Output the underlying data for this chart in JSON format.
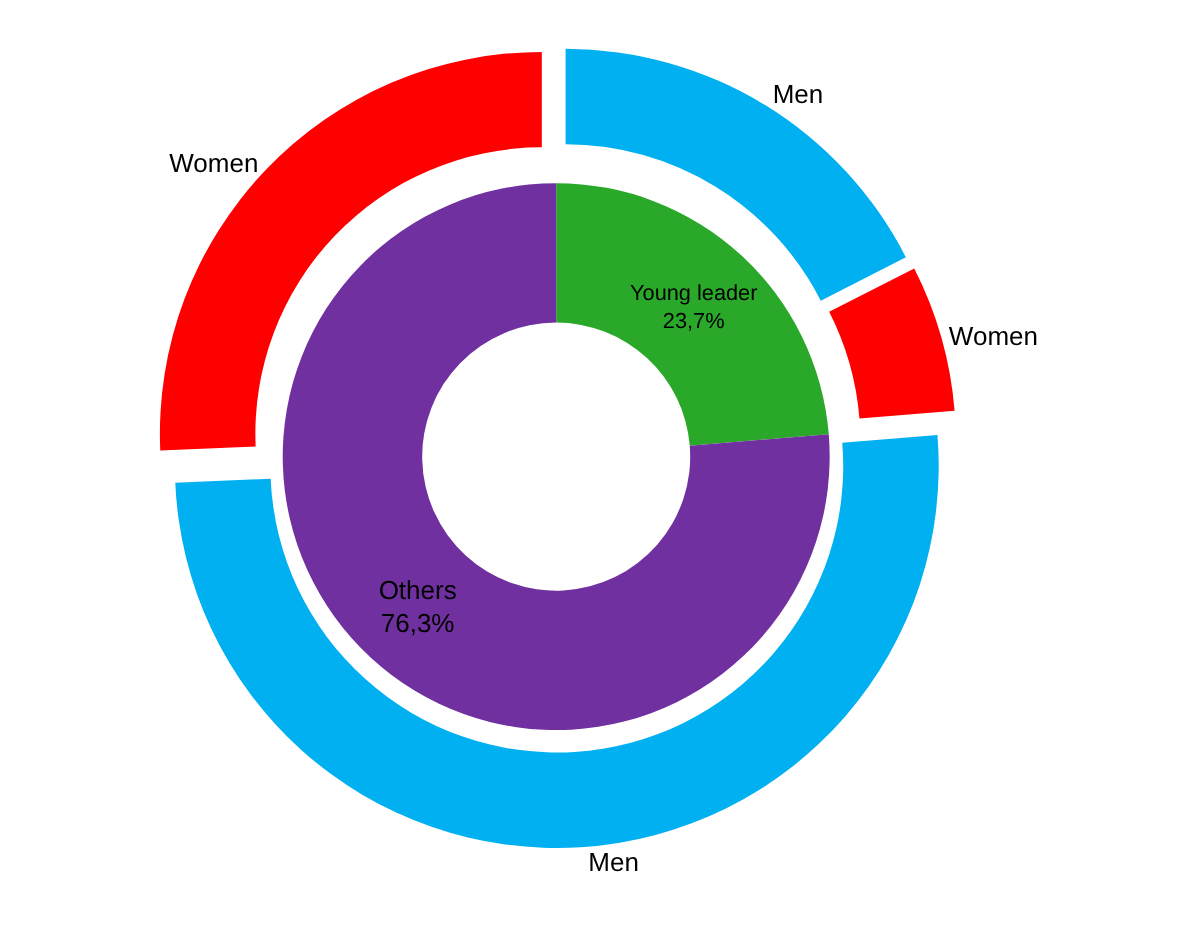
{
  "chart_data": [
    {
      "type": "donut",
      "categories": [
        "Young leader",
        "Others"
      ],
      "values": [
        23.7,
        76.3
      ],
      "colors": [
        "#2aa82a",
        "#7030a0"
      ],
      "value_labels": [
        "23,7%",
        "76,3%"
      ]
    },
    {
      "type": "donut",
      "categories": [
        "Men",
        "Women",
        "Men",
        "Women"
      ],
      "values": [
        17.5,
        6.2,
        50.6,
        25.7
      ],
      "colors": [
        "#00b0f0",
        "#ff0000",
        "#00b0f0",
        "#ff0000"
      ]
    }
  ]
}
